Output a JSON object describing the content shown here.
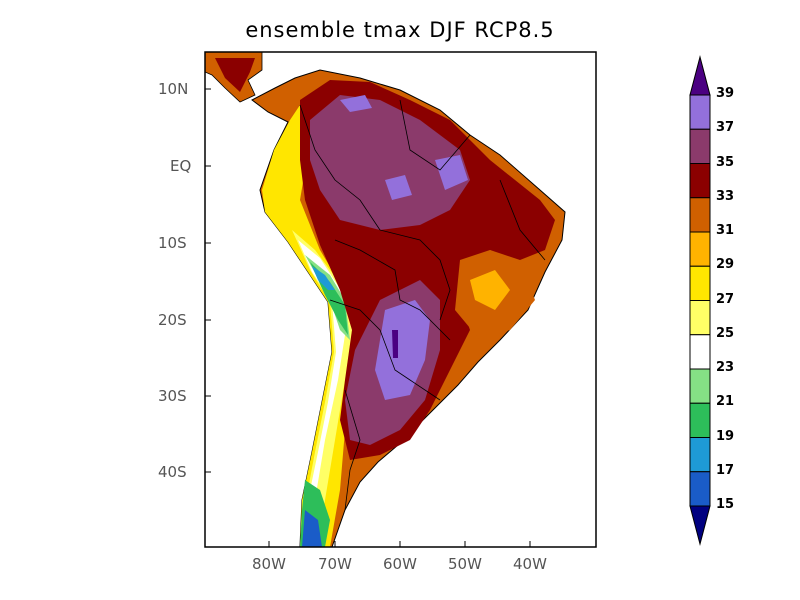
{
  "title": "ensemble tmax DJF RCP8.5",
  "lat_ticks": [
    "10N",
    "EQ",
    "10S",
    "20S",
    "30S",
    "40S"
  ],
  "lon_ticks": [
    "80W",
    "70W",
    "60W",
    "50W",
    "40W"
  ],
  "colorbar": {
    "labels": [
      "39",
      "37",
      "35",
      "33",
      "31",
      "29",
      "27",
      "25",
      "23",
      "21",
      "19",
      "17",
      "15"
    ],
    "colors": [
      "#9370db",
      "#8b3a6b",
      "#8b0000",
      "#d06000",
      "#ffb300",
      "#ffe600",
      "#ffff66",
      "#ffffff",
      "#85e085",
      "#2dbe5a",
      "#1e9ad6",
      "#1a5cc8"
    ],
    "over_color": "#4b0082",
    "under_color": "#000080"
  }
}
